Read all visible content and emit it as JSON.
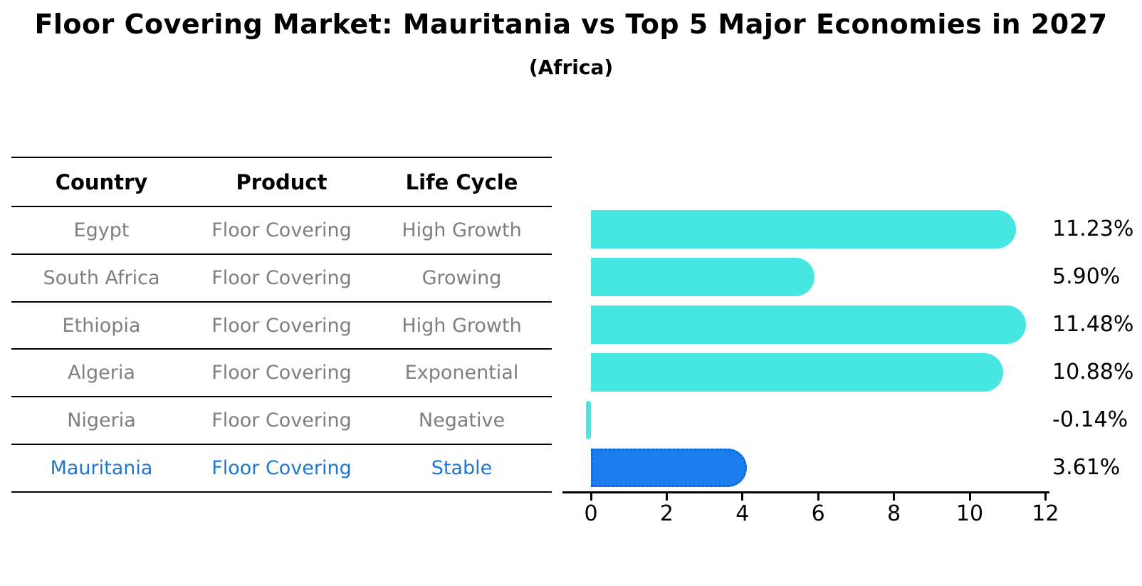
{
  "title": "Floor Covering Market: Mauritania vs Top 5 Major Economies in 2027",
  "subtitle": "(Africa)",
  "table": {
    "headers": [
      "Country",
      "Product",
      "Life Cycle"
    ],
    "rows": [
      {
        "country": "Egypt",
        "product": "Floor Covering",
        "life_cycle": "High Growth"
      },
      {
        "country": "South Africa",
        "product": "Floor Covering",
        "life_cycle": "Growing"
      },
      {
        "country": "Ethiopia",
        "product": "Floor Covering",
        "life_cycle": "High Growth"
      },
      {
        "country": "Algeria",
        "product": "Floor Covering",
        "life_cycle": "Exponential"
      },
      {
        "country": "Nigeria",
        "product": "Floor Covering",
        "life_cycle": "Negative"
      },
      {
        "country": "Mauritania",
        "product": "Floor Covering",
        "life_cycle": "Stable"
      }
    ],
    "highlight_row_index": 5
  },
  "chart_data": {
    "type": "bar",
    "orientation": "horizontal",
    "title": "Floor Covering Market: Mauritania vs Top 5 Major Economies in 2027",
    "subtitle": "(Africa)",
    "categories": [
      "Egypt",
      "South Africa",
      "Ethiopia",
      "Algeria",
      "Nigeria",
      "Mauritania"
    ],
    "values": [
      11.23,
      5.9,
      11.48,
      10.88,
      -0.14,
      3.61
    ],
    "value_labels": [
      "11.23%",
      "5.90%",
      "11.48%",
      "10.88%",
      "-0.14%",
      "3.61%"
    ],
    "x_ticks": [
      0,
      2,
      4,
      6,
      8,
      10,
      12
    ],
    "xlim": [
      -0.75,
      12.15
    ],
    "grid": false,
    "legend": null,
    "highlight_index": 5,
    "bar_color": "#46e7e3",
    "highlight_bar_color": "#1c7dee",
    "highlight_bar_edge_color": "#1565d0",
    "highlight_text_color": "#1e78d2",
    "muted_text_color": "#7f7f7f",
    "axis_color": "#000000",
    "background_color": "#ffffff"
  }
}
